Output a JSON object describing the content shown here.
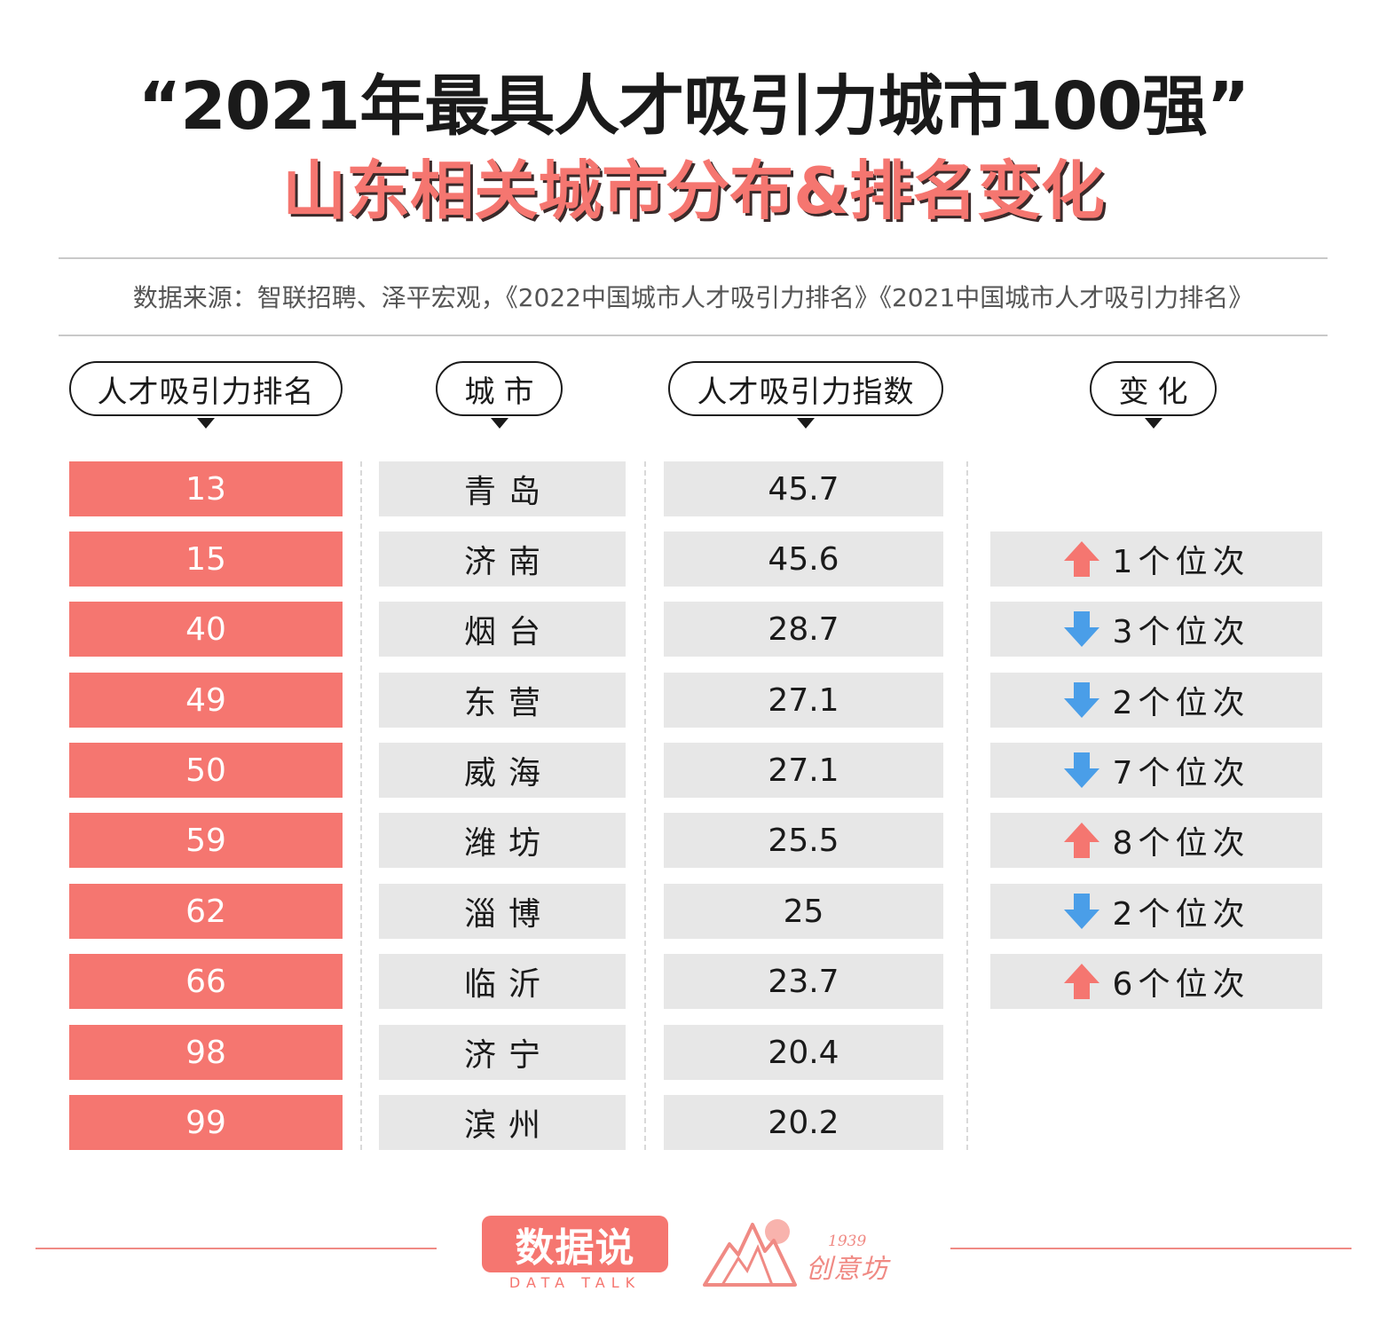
{
  "title": "“2021年最具人才吸引力城市100强”",
  "subtitle": "山东相关城市分布&排名变化",
  "source": "数据来源：智联招聘、泽平宏观，《2022中国城市人才吸引力排名》《2021中国城市人才吸引力排名》",
  "headers": {
    "rank": "人才吸引力排名",
    "city": "城市",
    "index": "人才吸引力指数",
    "change": "变化"
  },
  "colors": {
    "accent": "#f57670",
    "up": "#f57670",
    "down": "#4a9ee8",
    "cell_bg": "#e7e7e7"
  },
  "chart_data": {
    "type": "table",
    "title": "“2021年最具人才吸引力城市100强”",
    "subtitle": "山东相关城市分布&排名变化",
    "columns": [
      "人才吸引力排名",
      "城市",
      "人才吸引力指数",
      "变化"
    ],
    "rows": [
      {
        "rank": "13",
        "city": "青岛",
        "index": "45.7",
        "direction": "",
        "change": ""
      },
      {
        "rank": "15",
        "city": "济南",
        "index": "45.6",
        "direction": "up",
        "change": "1个位次"
      },
      {
        "rank": "40",
        "city": "烟台",
        "index": "28.7",
        "direction": "down",
        "change": "3个位次"
      },
      {
        "rank": "49",
        "city": "东营",
        "index": "27.1",
        "direction": "down",
        "change": "2个位次"
      },
      {
        "rank": "50",
        "city": "威海",
        "index": "27.1",
        "direction": "down",
        "change": "7个位次"
      },
      {
        "rank": "59",
        "city": "潍坊",
        "index": "25.5",
        "direction": "up",
        "change": "8个位次"
      },
      {
        "rank": "62",
        "city": "淄博",
        "index": "25",
        "direction": "down",
        "change": "2个位次"
      },
      {
        "rank": "66",
        "city": "临沂",
        "index": "23.7",
        "direction": "up",
        "change": "6个位次"
      },
      {
        "rank": "98",
        "city": "济宁",
        "index": "20.4",
        "direction": "",
        "change": ""
      },
      {
        "rank": "99",
        "city": "滨州",
        "index": "20.2",
        "direction": "",
        "change": ""
      }
    ]
  },
  "footer": {
    "logo1_main": "数据说",
    "logo1_sub": "DATA TALK",
    "logo2_year": "1939",
    "logo2_name": "创意坊"
  }
}
